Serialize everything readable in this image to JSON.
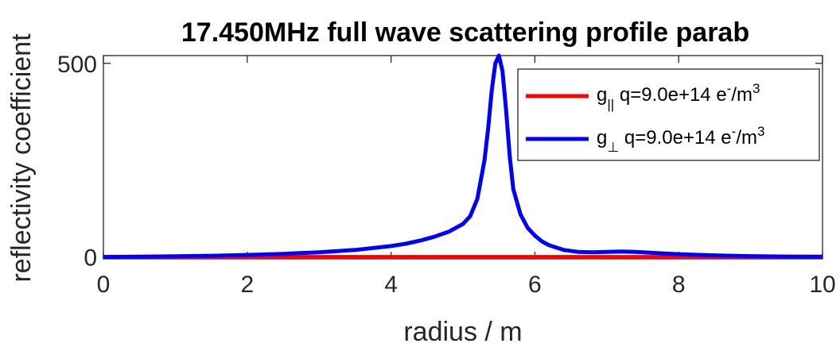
{
  "chart_data": {
    "type": "line",
    "title": "17.450MHz full wave scattering profile parab",
    "xlabel": "radius / m",
    "ylabel": "reflectivity coefficient",
    "xlim": [
      0,
      10
    ],
    "ylim": [
      -5,
      520
    ],
    "xticks": [
      0,
      2,
      4,
      6,
      8,
      10
    ],
    "yticks": [
      0,
      500
    ],
    "xtick_labels": [
      "0",
      "2",
      "4",
      "6",
      "8",
      "10"
    ],
    "ytick_labels": [
      "0",
      "500"
    ],
    "grid": false,
    "legend_position": "top-right",
    "series": [
      {
        "name": "g|| q=9.0e+14 e-/m3",
        "legend": {
          "base": "g",
          "sub": "||",
          "text": " q=9.0e+14 e",
          "sup1": "-",
          "unit": "/m",
          "sup2": "3"
        },
        "color": "#ff0000",
        "x": [
          0,
          2,
          4,
          5,
          5.5,
          6,
          7,
          8,
          9,
          10
        ],
        "y": [
          0,
          0,
          0,
          0,
          0,
          0,
          0,
          0,
          0,
          0
        ]
      },
      {
        "name": "g⊥ q=9.0e+14 e-/m3",
        "legend": {
          "base": "g",
          "sub": "⊥",
          "text": " q=9.0e+14 e",
          "sup1": "-",
          "unit": "/m",
          "sup2": "3"
        },
        "color": "#0000ff",
        "x": [
          0,
          0.5,
          1,
          1.5,
          2,
          2.5,
          3,
          3.5,
          4,
          4.2,
          4.4,
          4.6,
          4.8,
          5.0,
          5.1,
          5.2,
          5.3,
          5.35,
          5.4,
          5.45,
          5.5,
          5.55,
          5.6,
          5.65,
          5.7,
          5.8,
          5.9,
          6.0,
          6.1,
          6.2,
          6.4,
          6.6,
          6.8,
          7.0,
          7.2,
          7.4,
          7.6,
          7.8,
          8.0,
          8.5,
          9.0,
          9.5,
          10
        ],
        "y": [
          0,
          0.5,
          1.5,
          3,
          5,
          8,
          12,
          18,
          28,
          34,
          42,
          52,
          65,
          85,
          105,
          150,
          250,
          330,
          430,
          500,
          520,
          480,
          380,
          260,
          175,
          110,
          75,
          55,
          40,
          30,
          18,
          13,
          12,
          13,
          14,
          13,
          11,
          9,
          7,
          4,
          2,
          1,
          0.5
        ]
      }
    ]
  }
}
